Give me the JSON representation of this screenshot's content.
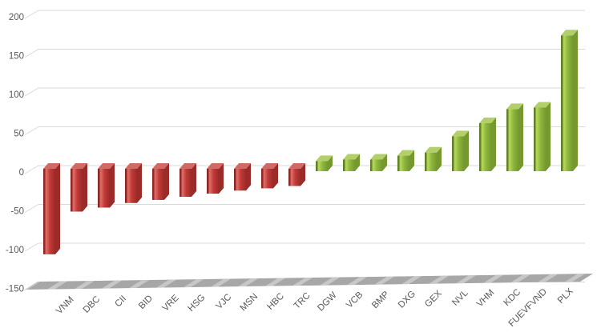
{
  "chart_data": {
    "type": "bar",
    "style": "3d-column",
    "title": "",
    "xlabel": "",
    "ylabel": "",
    "legend": false,
    "grid": true,
    "ylim": [
      -150,
      200
    ],
    "yticks": [
      200,
      150,
      100,
      50,
      0,
      -50,
      -100,
      -150
    ],
    "categories": [
      "VNM",
      "DBC",
      "CII",
      "BID",
      "VRE",
      "HSG",
      "VJC",
      "MSN",
      "HBC",
      "TRC",
      "DGW",
      "VCB",
      "BMP",
      "DXG",
      "GEX",
      "NVL",
      "VHM",
      "KDC",
      "FUEVFVND",
      "PLX"
    ],
    "values": [
      -110,
      -55,
      -50,
      -44,
      -40,
      -36,
      -32,
      -28,
      -25,
      -22,
      13,
      15,
      15,
      20,
      24,
      45,
      62,
      80,
      82,
      175
    ],
    "colors": {
      "negative": {
        "main": "#c23a37",
        "light": "#e0706b",
        "dark": "#8b2522",
        "side": "#9a2b28",
        "top": "#d06a66",
        "bottom": "#6e1e1c"
      },
      "positive": {
        "main": "#8fb83e",
        "light": "#bad95f",
        "dark": "#5e7d26",
        "side": "#75992f",
        "top": "#b3cf6a",
        "bottom": "#4f6a1f"
      },
      "gridline": "#d9d9d9",
      "tick_label": "#595959",
      "floor": "#a7a7a7",
      "floor_stripe": "#cbcbcb"
    }
  }
}
